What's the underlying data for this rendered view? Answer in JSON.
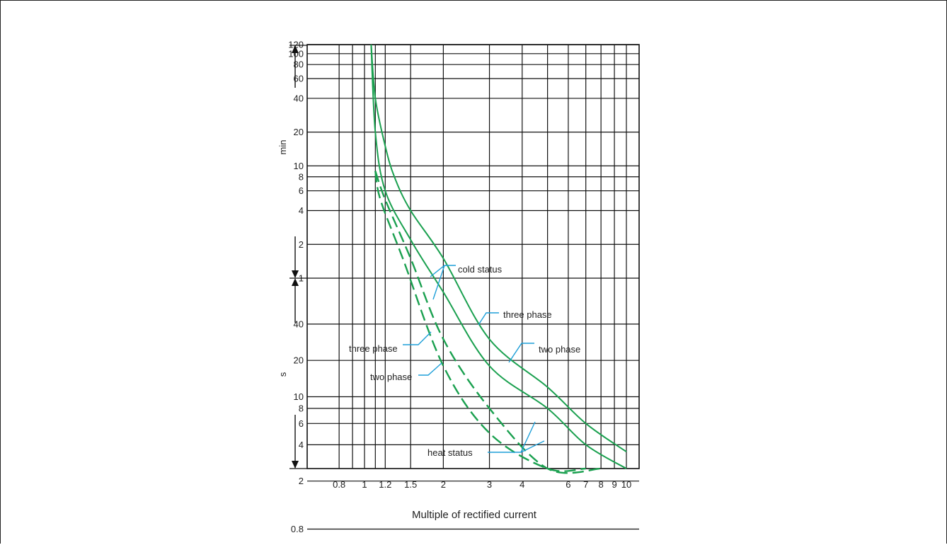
{
  "chart_data": {
    "type": "line",
    "title": "",
    "xlabel": "Multiple of rectified current",
    "x_scale": "log",
    "xlim": [
      0.8,
      10.5
    ],
    "x_ticks": [
      "0.8",
      "1",
      "1.2",
      "1.5",
      "2",
      "3",
      "4",
      "6",
      "7",
      "8",
      "9",
      "10"
    ],
    "y_scale": "log",
    "y_unit_groups": [
      {
        "label": "min",
        "ticks": [
          "120",
          "100",
          "80",
          "60",
          "40",
          "20",
          "10",
          "8",
          "6",
          "4",
          "2",
          "1"
        ]
      },
      {
        "label": "s",
        "ticks": [
          "40",
          "20",
          "10",
          "8",
          "6",
          "4",
          "2",
          "0.8"
        ]
      }
    ],
    "grid": true,
    "series": [
      {
        "name": "three phase",
        "status": "cold",
        "style": "solid",
        "color": "#1aa04f",
        "points": [
          [
            1.06,
            "120 min"
          ],
          [
            1.1,
            "40 min"
          ],
          [
            1.2,
            "15 min"
          ],
          [
            1.3,
            "8 min"
          ],
          [
            1.5,
            "4 min"
          ],
          [
            2,
            "1.5 min"
          ],
          [
            3,
            "30 s"
          ],
          [
            5,
            "12 s"
          ],
          [
            7,
            "6 s"
          ],
          [
            10,
            "3.5 s"
          ]
        ]
      },
      {
        "name": "two phase",
        "status": "cold",
        "style": "solid",
        "color": "#1aa04f",
        "points": [
          [
            1.06,
            "120 min"
          ],
          [
            1.1,
            "20 min"
          ],
          [
            1.2,
            "6 min"
          ],
          [
            1.5,
            "2.2 min"
          ],
          [
            2,
            "45 s"
          ],
          [
            3,
            "18 s"
          ],
          [
            5,
            "8 s"
          ],
          [
            7,
            "4 s"
          ],
          [
            10,
            "2.3 s"
          ]
        ]
      },
      {
        "name": "three phase",
        "status": "heat",
        "style": "dashed",
        "color": "#1aa04f",
        "points": [
          [
            1.1,
            "9 min"
          ],
          [
            1.2,
            "5 min"
          ],
          [
            1.5,
            "1.5 min"
          ],
          [
            2,
            "30 s"
          ],
          [
            3,
            "8 s"
          ],
          [
            5,
            "2.5 s"
          ],
          [
            8,
            "0.8 s"
          ]
        ]
      },
      {
        "name": "two phase",
        "status": "heat",
        "style": "dashed",
        "color": "#1aa04f",
        "points": [
          [
            1.1,
            "9 min"
          ],
          [
            1.15,
            "5 min"
          ],
          [
            1.4,
            "1.5 min"
          ],
          [
            2,
            "18 s"
          ],
          [
            3,
            "5 s"
          ],
          [
            5,
            "1.8 s"
          ],
          [
            7,
            "0.8 s"
          ]
        ]
      }
    ],
    "annotations": {
      "cold_status": "cold status",
      "heat_status": "heat status",
      "cold_three_phase": "three phase",
      "cold_two_phase": "two phase",
      "heat_three_phase": "three phase",
      "heat_two_phase": "two phase"
    },
    "colors": {
      "curve": "#1aa04f",
      "leader": "#1e9fd8",
      "grid": "#111111"
    }
  }
}
